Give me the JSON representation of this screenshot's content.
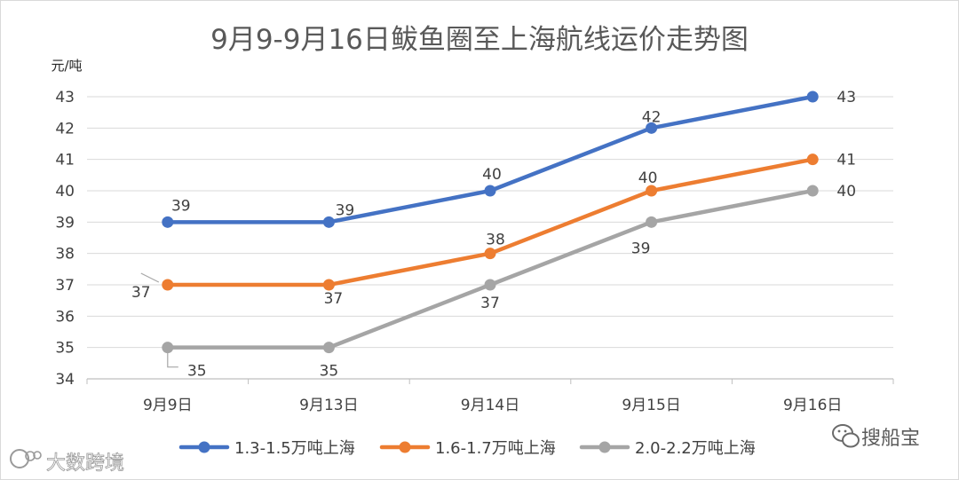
{
  "chart_data": {
    "type": "line",
    "title": "9月9-9月16日鲅鱼圈至上海航线运价走势图",
    "ylabel": "元/吨",
    "xlabel": "",
    "ylim": [
      34,
      43
    ],
    "yticks": [
      34,
      35,
      36,
      37,
      38,
      39,
      40,
      41,
      42,
      43
    ],
    "categories": [
      "9月9日",
      "9月13日",
      "9月14日",
      "9月15日",
      "9月16日"
    ],
    "grid": true,
    "legend_position": "bottom",
    "series": [
      {
        "name": "1.3-1.5万吨上海",
        "color": "#4472C4",
        "values": [
          39,
          39,
          40,
          42,
          43
        ]
      },
      {
        "name": "1.6-1.7万吨上海",
        "color": "#ED7D31",
        "values": [
          37,
          37,
          38,
          40,
          41
        ]
      },
      {
        "name": "2.0-2.2万吨上海",
        "color": "#A5A5A5",
        "values": [
          35,
          35,
          37,
          39,
          40
        ]
      }
    ]
  },
  "watermarks": {
    "left": "大数跨境",
    "right": "搜船宝"
  }
}
